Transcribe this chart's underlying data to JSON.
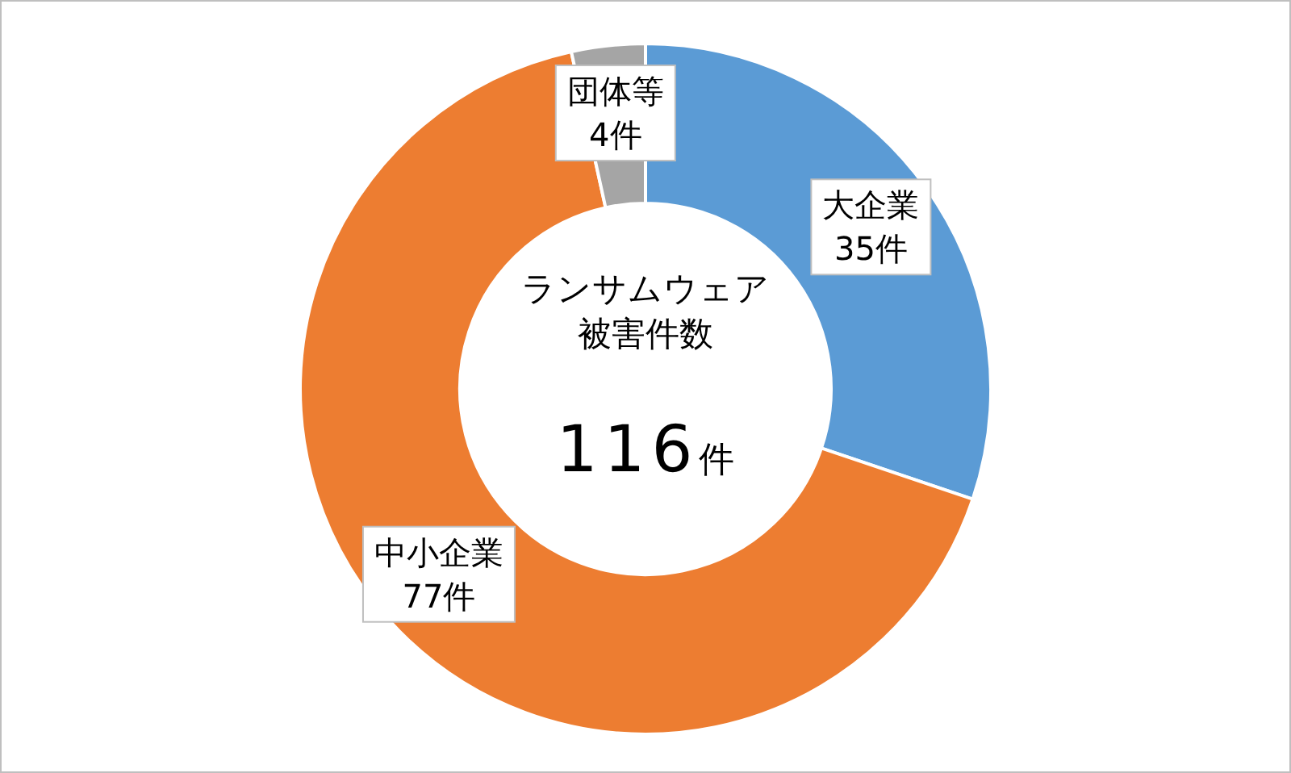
{
  "chart_data": {
    "type": "donut",
    "categories": [
      "大企業",
      "中小企業",
      "団体等"
    ],
    "values": [
      35,
      77,
      4
    ],
    "colors": [
      "#5b9bd5",
      "#ed7d31",
      "#a5a5a5"
    ],
    "value_labels": [
      "35件",
      "77件",
      "4件"
    ],
    "annotations": [
      "ランサムウェア",
      "被害件数",
      "116件"
    ]
  }
}
